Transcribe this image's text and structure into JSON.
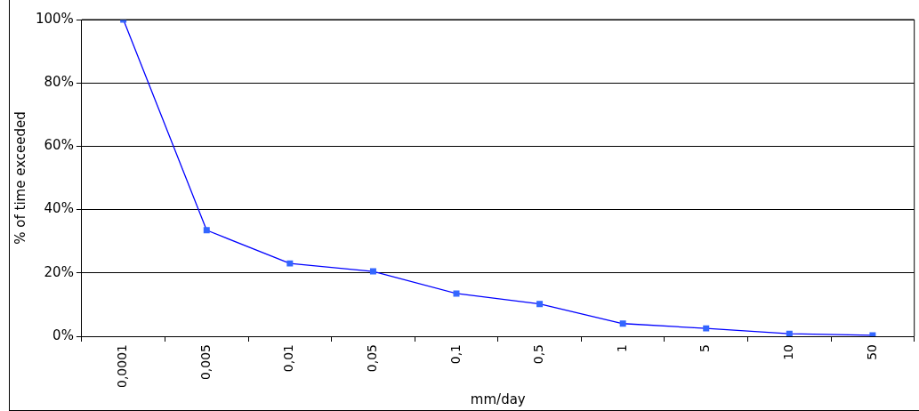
{
  "chart_data": {
    "type": "line",
    "xlabel": "mm/day",
    "ylabel": "% of time exceeded",
    "categories": [
      "0,0001",
      "0,005",
      "0,01",
      "0,05",
      "0,1",
      "0,5",
      "1",
      "5",
      "10",
      "50"
    ],
    "series": [
      {
        "color": "#3366ff",
        "values": [
          100,
          33.5,
          23,
          20.5,
          13.5,
          10.2,
          4,
          2.5,
          0.8,
          0.3
        ]
      }
    ],
    "ylim": [
      0,
      100
    ],
    "yticks": [
      {
        "value": 0,
        "label": "0%"
      },
      {
        "value": 20,
        "label": "20%"
      },
      {
        "value": 40,
        "label": "40%"
      },
      {
        "value": 60,
        "label": "60%"
      },
      {
        "value": 80,
        "label": "80%"
      },
      {
        "value": 100,
        "label": "100%"
      }
    ],
    "grid": "y",
    "legend": false,
    "marker": "square",
    "line_style": "solid"
  }
}
